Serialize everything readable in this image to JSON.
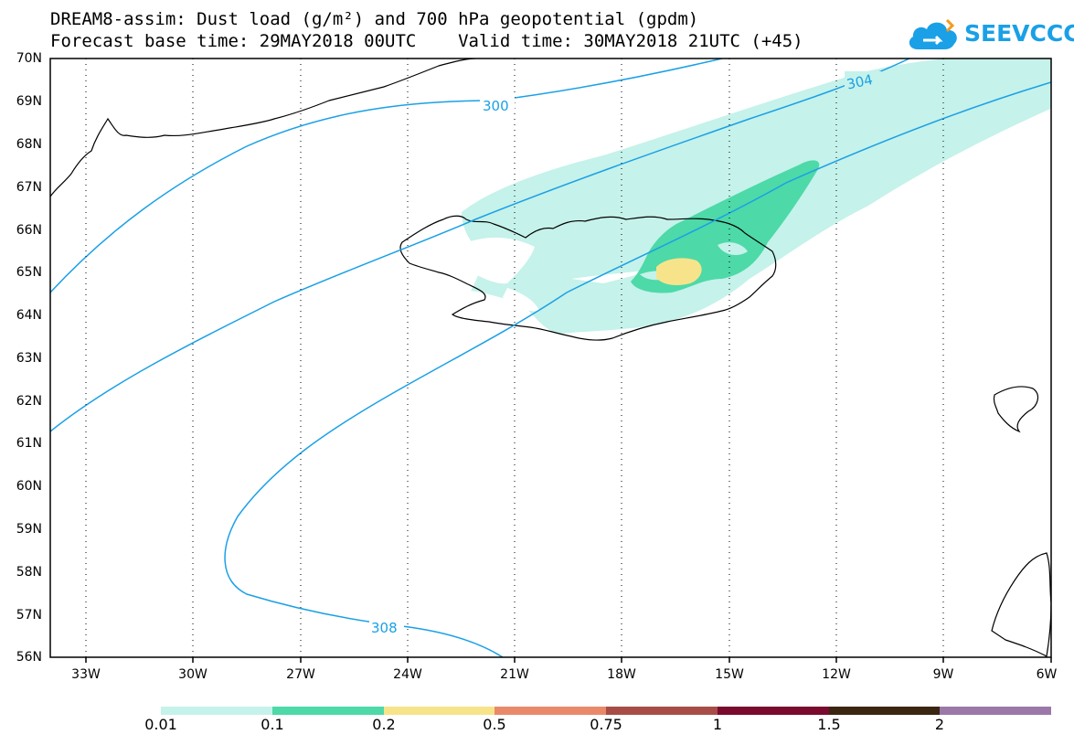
{
  "header": {
    "title_line1": "DREAM8-assim: Dust load (g/m²) and 700 hPa geopotential (gpdm)",
    "title_line2": "Forecast base time: 29MAY2018 00UTC    Valid time: 30MAY2018 21UTC (+45)"
  },
  "logo": {
    "text": "SEEVCCC",
    "icon": "cloud-icon",
    "color": "#1aa0e6"
  },
  "map": {
    "lat_labels": [
      "70N",
      "69N",
      "68N",
      "67N",
      "66N",
      "65N",
      "64N",
      "63N",
      "62N",
      "61N",
      "60N",
      "59N",
      "58N",
      "57N",
      "56N"
    ],
    "lon_labels": [
      "33W",
      "30W",
      "27W",
      "24W",
      "21W",
      "18W",
      "15W",
      "12W",
      "9W",
      "6W"
    ],
    "contour_labels": [
      "300",
      "304",
      "308"
    ],
    "contour_color": "#1aa0e6"
  },
  "colorbar": {
    "labels": [
      "0.01",
      "0.1",
      "0.2",
      "0.5",
      "0.75",
      "1",
      "1.5",
      "2"
    ],
    "colors": [
      "#c5f2ea",
      "#4dd9a8",
      "#f7e48a",
      "#e9896a",
      "#a84c48",
      "#7a0a2e",
      "#3b2612",
      "#9b78a8"
    ]
  }
}
